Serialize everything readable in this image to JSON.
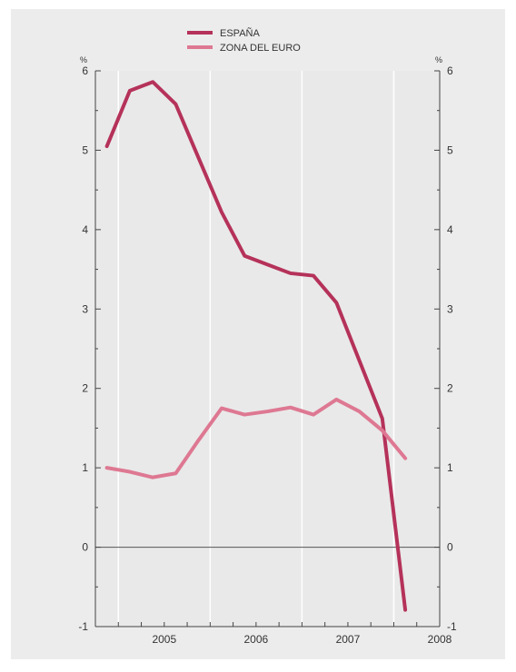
{
  "chart_data": {
    "type": "line",
    "legend": {
      "placement": "top-center",
      "items": [
        "ESPAÑA",
        "ZONA DEL EURO"
      ]
    },
    "yunit_left": "%",
    "yunit_right": "%",
    "ylim": [
      -1,
      6
    ],
    "yticks": [
      -1,
      0,
      1,
      2,
      3,
      4,
      5,
      6
    ],
    "xlim": [
      2004.75,
      2008.5
    ],
    "xtick_labels": [
      "2005",
      "2006",
      "2007",
      "2008"
    ],
    "grid": "vertical",
    "zero_line": true,
    "series": [
      {
        "name": "ESPAÑA",
        "color": "#b5325a",
        "x": [
          2004.875,
          2005.125,
          2005.375,
          2005.625,
          2005.875,
          2006.125,
          2006.375,
          2006.625,
          2006.875,
          2007.125,
          2007.375,
          2007.625,
          2007.875,
          2008.125
        ],
        "values": [
          5.05,
          5.75,
          5.86,
          5.58,
          4.9,
          4.22,
          3.67,
          3.56,
          3.45,
          3.42,
          3.08,
          2.35,
          1.62,
          -0.79
        ]
      },
      {
        "name": "ZONA DEL EURO",
        "color": "#de7892",
        "x": [
          2004.875,
          2005.125,
          2005.375,
          2005.625,
          2005.875,
          2006.125,
          2006.375,
          2006.625,
          2006.875,
          2007.125,
          2007.375,
          2007.625,
          2007.875,
          2008.125
        ],
        "values": [
          1.0,
          0.95,
          0.88,
          0.93,
          1.35,
          1.75,
          1.67,
          1.71,
          1.76,
          1.67,
          1.86,
          1.71,
          1.47,
          1.12
        ]
      }
    ]
  }
}
